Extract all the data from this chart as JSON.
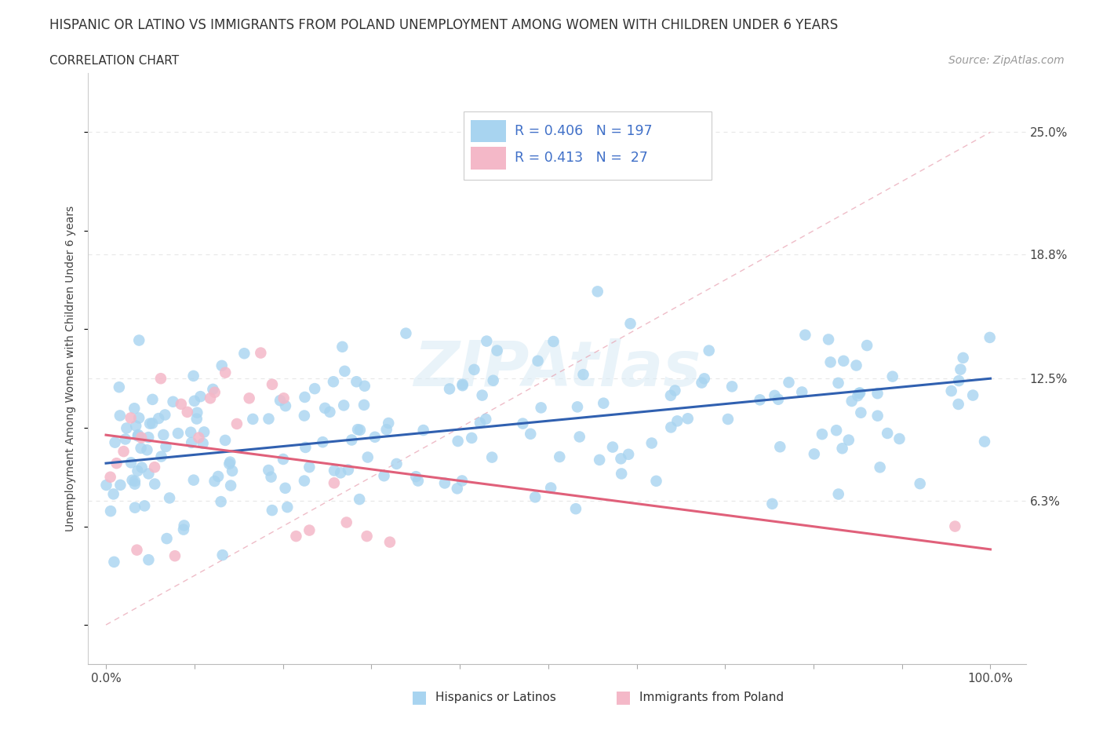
{
  "title": "HISPANIC OR LATINO VS IMMIGRANTS FROM POLAND UNEMPLOYMENT AMONG WOMEN WITH CHILDREN UNDER 6 YEARS",
  "subtitle": "CORRELATION CHART",
  "source": "Source: ZipAtlas.com",
  "ylabel": "Unemployment Among Women with Children Under 6 years",
  "R1": "0.406",
  "N1": "197",
  "R2": "0.413",
  "N2": "27",
  "color_blue": "#A8D4F0",
  "color_pink": "#F4B8C8",
  "line_blue": "#3060B0",
  "line_pink": "#E0607A",
  "legend1_label": "Hispanics or Latinos",
  "legend2_label": "Immigrants from Poland",
  "watermark": "ZIPAtlas",
  "xlim": [
    -2,
    104
  ],
  "ylim": [
    -2,
    28
  ],
  "ytick_pos": [
    6.3,
    12.5,
    18.8,
    25.0
  ],
  "ytick_labels": [
    "6.3%",
    "12.5%",
    "18.8%",
    "25.0%"
  ],
  "xtick_pos": [
    0,
    10,
    20,
    30,
    40,
    50,
    60,
    70,
    80,
    90,
    100
  ],
  "xtick_labels": [
    "0.0%",
    "",
    "",
    "",
    "",
    "",
    "",
    "",
    "",
    "",
    "100.0%"
  ],
  "grid_color": "#E8E8E8",
  "title_fontsize": 12,
  "subtitle_fontsize": 11,
  "source_fontsize": 10,
  "axis_label_fontsize": 10,
  "tick_fontsize": 11,
  "legend_text_color": "#4070C8",
  "legend_label_color": "#333333"
}
